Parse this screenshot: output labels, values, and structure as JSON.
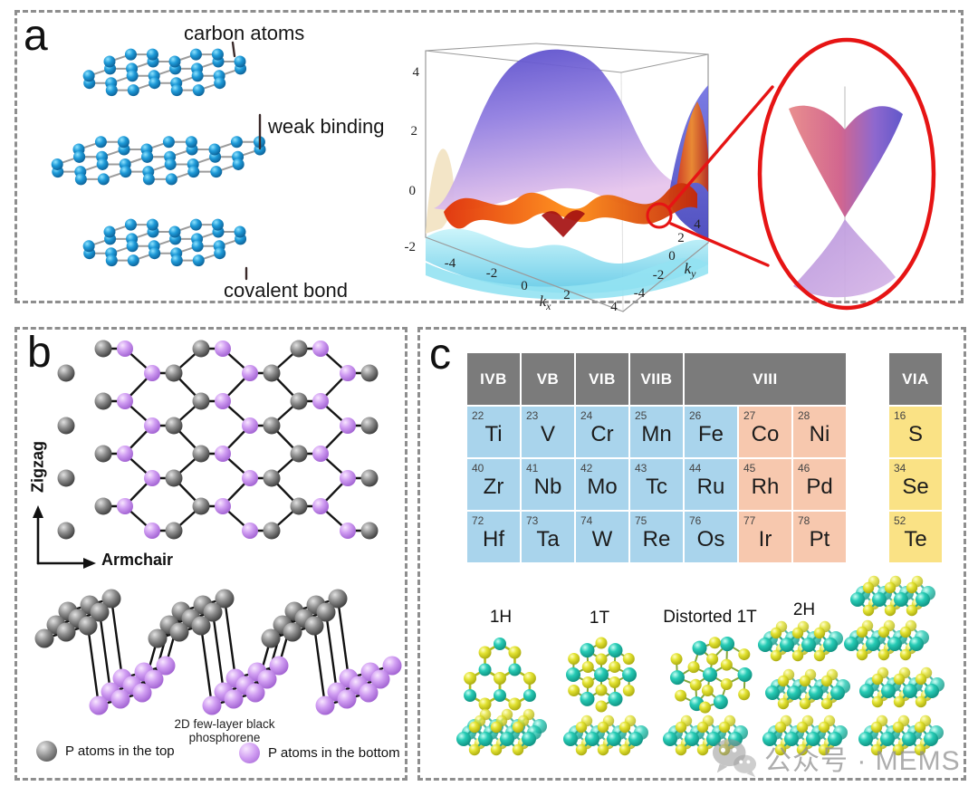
{
  "panels": {
    "a": {
      "label": "a",
      "annotations": {
        "carbon_atoms": "carbon atoms",
        "weak_binding": "weak binding",
        "covalent_bond": "covalent bond"
      },
      "band_plot": {
        "z_ticks": [
          "4",
          "2",
          "0",
          "-2"
        ],
        "kx_ticks": [
          "-4",
          "-2",
          "0",
          "2",
          "4"
        ],
        "ky_ticks": [
          "4",
          "2",
          "0",
          "-2",
          "-4"
        ],
        "kx_label_base": "k",
        "kx_label_sub": "x",
        "ky_label_base": "k",
        "ky_label_sub": "y"
      }
    },
    "b": {
      "label": "b",
      "direction_vertical": "Zigzag",
      "direction_horizontal": "Armchair",
      "caption": "2D few-layer black phosphorene",
      "legend": [
        {
          "label": "P atoms in the top",
          "color": "gray"
        },
        {
          "label": "P atoms in the bottom",
          "color": "purple"
        }
      ]
    },
    "c": {
      "label": "c",
      "periodic_table": {
        "group_headers": [
          {
            "label": "IVB",
            "cols": 1
          },
          {
            "label": "VB",
            "cols": 1
          },
          {
            "label": "VIB",
            "cols": 1
          },
          {
            "label": "VIIB",
            "cols": 1
          },
          {
            "label": "VIII",
            "cols": 3
          }
        ],
        "via_header": "VIA",
        "rows": [
          [
            {
              "z": "22",
              "sym": "Ti",
              "tone": "blue"
            },
            {
              "z": "23",
              "sym": "V",
              "tone": "blue"
            },
            {
              "z": "24",
              "sym": "Cr",
              "tone": "blue"
            },
            {
              "z": "25",
              "sym": "Mn",
              "tone": "blue"
            },
            {
              "z": "26",
              "sym": "Fe",
              "tone": "blue"
            },
            {
              "z": "27",
              "sym": "Co",
              "tone": "salmon"
            },
            {
              "z": "28",
              "sym": "Ni",
              "tone": "salmon"
            }
          ],
          [
            {
              "z": "40",
              "sym": "Zr",
              "tone": "blue"
            },
            {
              "z": "41",
              "sym": "Nb",
              "tone": "blue"
            },
            {
              "z": "42",
              "sym": "Mo",
              "tone": "blue"
            },
            {
              "z": "43",
              "sym": "Tc",
              "tone": "blue"
            },
            {
              "z": "44",
              "sym": "Ru",
              "tone": "blue"
            },
            {
              "z": "45",
              "sym": "Rh",
              "tone": "salmon"
            },
            {
              "z": "46",
              "sym": "Pd",
              "tone": "salmon"
            }
          ],
          [
            {
              "z": "72",
              "sym": "Hf",
              "tone": "blue"
            },
            {
              "z": "73",
              "sym": "Ta",
              "tone": "blue"
            },
            {
              "z": "74",
              "sym": "W",
              "tone": "blue"
            },
            {
              "z": "75",
              "sym": "Re",
              "tone": "blue"
            },
            {
              "z": "76",
              "sym": "Os",
              "tone": "blue"
            },
            {
              "z": "77",
              "sym": "Ir",
              "tone": "salmon"
            },
            {
              "z": "78",
              "sym": "Pt",
              "tone": "salmon"
            }
          ]
        ],
        "via_cells": [
          {
            "z": "16",
            "sym": "S",
            "tone": "yellow"
          },
          {
            "z": "34",
            "sym": "Se",
            "tone": "yellow"
          },
          {
            "z": "52",
            "sym": "Te",
            "tone": "yellow"
          }
        ],
        "tone_colors": {
          "blue": "#a9d4ec",
          "salmon": "#f7c8ae",
          "yellow": "#fae285",
          "header": "#7b7b7b"
        }
      },
      "phase_labels": [
        "1H",
        "1T",
        "Distorted 1T",
        "2H"
      ]
    }
  },
  "watermark": {
    "text": "公众号 · MEMS"
  }
}
